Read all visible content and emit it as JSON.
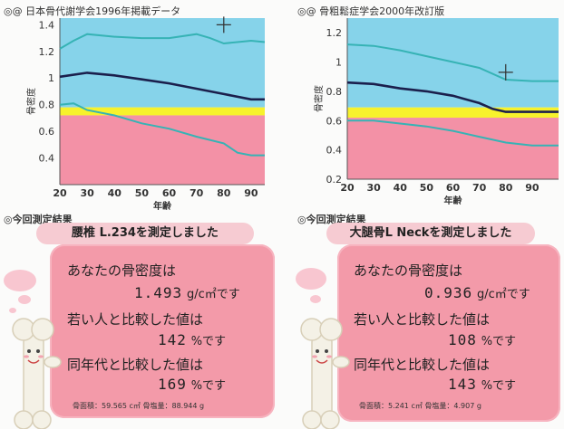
{
  "left": {
    "title": "◎@ 日本骨代謝学会1996年掲載データ",
    "result_heading": "◎今回測定結果",
    "measure_label": "腰椎 L.234を測定しました",
    "bmd_label": "あなたの骨密度は",
    "bmd_value": "1.493",
    "bmd_unit": "g/c㎡です",
    "young_label": "若い人と比較した値は",
    "young_value": "142",
    "young_unit": "%です",
    "age_label": "同年代と比較した値は",
    "age_value": "169",
    "age_unit": "%です",
    "footer": "骨面積：59.565 c㎡   骨塩量：88.944 g"
  },
  "right": {
    "title": "◎@ 骨粗鬆症学会2000年改訂版",
    "result_heading": "◎今回測定結果",
    "measure_label": "大腿骨L Neckを測定しました",
    "bmd_label": "あなたの骨密度は",
    "bmd_value": "0.936",
    "bmd_unit": "g/c㎡です",
    "young_label": "若い人と比較した値は",
    "young_value": "108",
    "young_unit": "%です",
    "age_label": "同年代と比較した値は",
    "age_value": "143",
    "age_unit": "%です",
    "footer": "骨面積：5.241 c㎡   骨塩量：4.907 g"
  },
  "colors": {
    "sky": "#86d3ea",
    "yellow": "#f7f22c",
    "pink": "#f391a6",
    "teal": "#36b3b5",
    "navy": "#1b1f4c",
    "card": "#f39aa9"
  },
  "chart_data": [
    {
      "type": "line",
      "ylabel": "骨密度",
      "xlabel": "年齢",
      "xlim": [
        20,
        95
      ],
      "ylim": [
        0.2,
        1.45
      ],
      "xticks": [
        20,
        30,
        40,
        50,
        60,
        70,
        80,
        90
      ],
      "yticks": [
        0.4,
        0.6,
        0.8,
        1.0,
        1.2,
        1.4
      ],
      "bands": {
        "pink_max": 0.72,
        "yellow_max": 0.78
      },
      "series": [
        {
          "color": "#36b3b5",
          "x": [
            20,
            25,
            30,
            40,
            50,
            60,
            70,
            75,
            80,
            85,
            90,
            95
          ],
          "y": [
            1.22,
            1.28,
            1.33,
            1.31,
            1.3,
            1.3,
            1.33,
            1.3,
            1.26,
            1.27,
            1.28,
            1.27
          ]
        },
        {
          "color": "#1b1f4c",
          "x": [
            20,
            30,
            40,
            50,
            60,
            70,
            80,
            90,
            95
          ],
          "y": [
            1.01,
            1.04,
            1.02,
            0.99,
            0.96,
            0.92,
            0.88,
            0.84,
            0.84
          ]
        },
        {
          "color": "#36b3b5",
          "x": [
            20,
            25,
            30,
            40,
            50,
            60,
            70,
            80,
            85,
            90,
            95
          ],
          "y": [
            0.8,
            0.81,
            0.76,
            0.72,
            0.66,
            0.62,
            0.56,
            0.51,
            0.44,
            0.42,
            0.42
          ]
        }
      ],
      "marker": {
        "x": 80,
        "y": 1.4
      }
    },
    {
      "type": "line",
      "ylabel": "骨密度",
      "xlabel": "年齢",
      "xlim": [
        20,
        100
      ],
      "ylim": [
        0.2,
        1.3
      ],
      "xticks": [
        20,
        30,
        40,
        50,
        60,
        70,
        80,
        90
      ],
      "yticks": [
        0.2,
        0.4,
        0.6,
        0.8,
        1.0,
        1.2
      ],
      "bands": {
        "pink_max": 0.62,
        "yellow_max": 0.69
      },
      "series": [
        {
          "color": "#36b3b5",
          "x": [
            20,
            30,
            40,
            50,
            60,
            70,
            80,
            90,
            100
          ],
          "y": [
            1.12,
            1.11,
            1.08,
            1.04,
            1.0,
            0.96,
            0.88,
            0.87,
            0.87
          ]
        },
        {
          "color": "#1b1f4c",
          "x": [
            20,
            30,
            40,
            50,
            60,
            70,
            75,
            80,
            90,
            100
          ],
          "y": [
            0.86,
            0.85,
            0.82,
            0.8,
            0.77,
            0.72,
            0.68,
            0.66,
            0.66,
            0.66
          ]
        },
        {
          "color": "#36b3b5",
          "x": [
            20,
            30,
            40,
            50,
            60,
            70,
            80,
            90,
            100
          ],
          "y": [
            0.6,
            0.6,
            0.58,
            0.56,
            0.53,
            0.49,
            0.45,
            0.43,
            0.43
          ]
        }
      ],
      "marker": {
        "x": 80,
        "y": 0.93
      }
    }
  ]
}
